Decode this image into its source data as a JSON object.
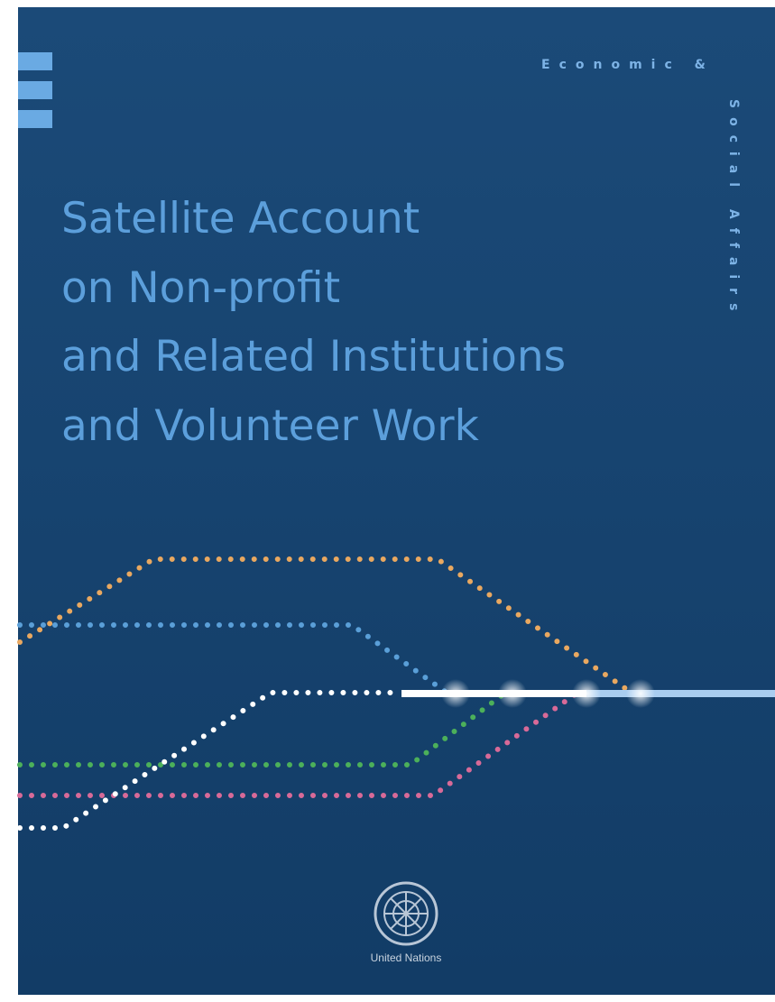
{
  "header": {
    "series_line1": "Economic &",
    "series_line2": "Social Affairs"
  },
  "title": {
    "lines": [
      "Satellite Account",
      "on Non-profit",
      "and Related Institutions",
      "and Volunteer Work"
    ]
  },
  "footer": {
    "publisher": "United Nations"
  }
}
